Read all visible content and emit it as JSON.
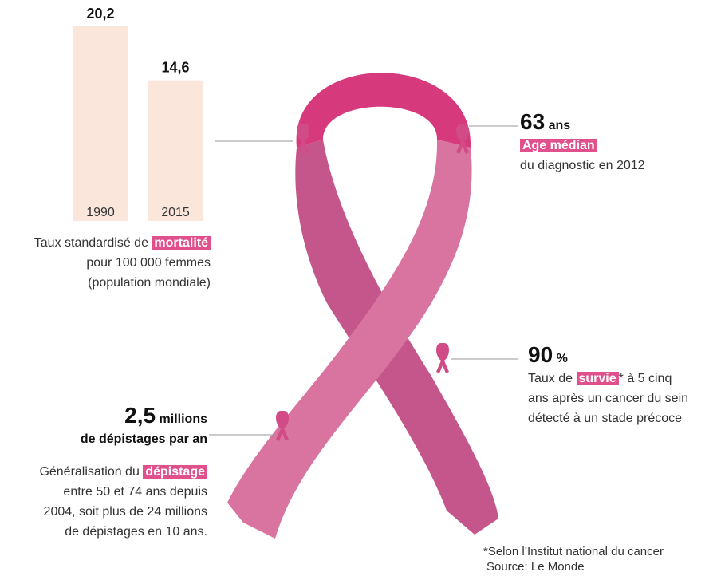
{
  "chart_data": {
    "type": "bar",
    "categories": [
      "1990",
      "2015"
    ],
    "values": [
      20.2,
      14.6
    ],
    "value_labels": [
      "20,2",
      "14,6"
    ],
    "color": "#fbe6dc"
  },
  "mortality": {
    "line1": "Taux standardisé de",
    "highlight": "mortalité",
    "line2": "pour 100 000 femmes",
    "line3": "(population mondiale)"
  },
  "median_age": {
    "number": "63",
    "unit": "ans",
    "highlight": "Age médian",
    "line": "du diagnostic en 2012"
  },
  "survival": {
    "number": "90",
    "unit": "%",
    "prefix": "Taux de",
    "highlight": "survie",
    "suffix": "* à 5 cinq",
    "line2": "ans après un cancer du sein",
    "line3": "détecté à un stade précoce"
  },
  "screening": {
    "number": "2,5",
    "unit": "millions",
    "subtitle": "de dépistages par an",
    "prefix": "Généralisation du",
    "highlight": "dépistage",
    "line2": "entre 50 et 74 ans depuis",
    "line3": "2004, soit plus de 24 millions",
    "line4": "de dépistages en 10 ans."
  },
  "footnote": {
    "note": "*Selon l’Institut national du cancer",
    "source": "Source: Le Monde"
  }
}
